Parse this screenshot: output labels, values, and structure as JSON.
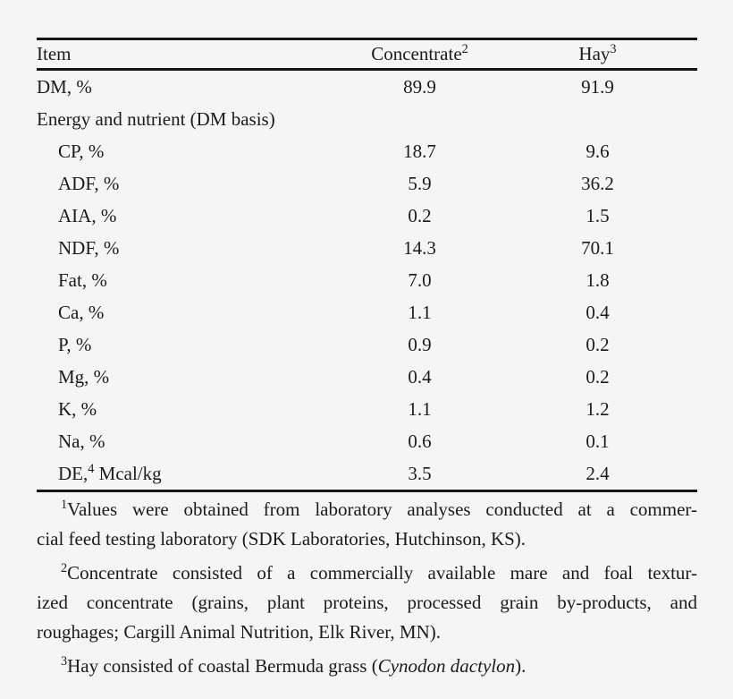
{
  "page": {
    "background": "#f5f5f6",
    "text_color": "#1b1b1b",
    "rule_color": "#161616"
  },
  "table": {
    "columns": [
      {
        "label": "Item",
        "sup": ""
      },
      {
        "label": "Concentrate",
        "sup": "2"
      },
      {
        "label": "Hay",
        "sup": "3"
      }
    ],
    "rows": [
      {
        "label": "DM, %",
        "indent": false,
        "concentrate": "89.9",
        "hay": "91.9"
      },
      {
        "label": "Energy and nutrient (DM basis)",
        "indent": false,
        "concentrate": "",
        "hay": ""
      },
      {
        "label": "CP, %",
        "indent": true,
        "concentrate": "18.7",
        "hay": "9.6"
      },
      {
        "label": "ADF, %",
        "indent": true,
        "concentrate": "5.9",
        "hay": "36.2"
      },
      {
        "label": "AIA, %",
        "indent": true,
        "concentrate": "0.2",
        "hay": "1.5"
      },
      {
        "label": "NDF, %",
        "indent": true,
        "concentrate": "14.3",
        "hay": "70.1"
      },
      {
        "label": "Fat, %",
        "indent": true,
        "concentrate": "7.0",
        "hay": "1.8"
      },
      {
        "label": "Ca, %",
        "indent": true,
        "concentrate": "1.1",
        "hay": "0.4"
      },
      {
        "label": "P, %",
        "indent": true,
        "concentrate": "0.9",
        "hay": "0.2"
      },
      {
        "label": "Mg, %",
        "indent": true,
        "concentrate": "0.4",
        "hay": "0.2"
      },
      {
        "label": "K, %",
        "indent": true,
        "concentrate": "1.1",
        "hay": "1.2"
      },
      {
        "label": "Na, %",
        "indent": true,
        "concentrate": "0.6",
        "hay": "0.1"
      },
      {
        "label": "DE,",
        "label_sup": "4",
        "label_after": " Mcal/kg",
        "indent": true,
        "concentrate": "3.5",
        "hay": "2.4"
      }
    ]
  },
  "footnotes": [
    {
      "marker": "1",
      "lines": [
        {
          "justify": true,
          "segments": [
            {
              "t": "Values were obtained from laboratory analyses conducted at a commer-",
              "i": false
            }
          ]
        },
        {
          "justify": false,
          "segments": [
            {
              "t": "cial feed testing laboratory (SDK Laboratories, Hutchinson, KS).",
              "i": false
            }
          ]
        }
      ]
    },
    {
      "marker": "2",
      "lines": [
        {
          "justify": true,
          "segments": [
            {
              "t": "Concentrate consisted of a commercially available mare and foal textur-",
              "i": false
            }
          ]
        },
        {
          "justify": true,
          "segments": [
            {
              "t": "ized concentrate (grains, plant proteins, processed grain by-products, and",
              "i": false
            }
          ]
        },
        {
          "justify": false,
          "segments": [
            {
              "t": "roughages; Cargill Animal Nutrition, Elk River, MN).",
              "i": false
            }
          ]
        }
      ]
    },
    {
      "marker": "3",
      "lines": [
        {
          "justify": false,
          "segments": [
            {
              "t": "Hay consisted of coastal Bermuda grass (",
              "i": false
            },
            {
              "t": "Cynodon dactylon",
              "i": true
            },
            {
              "t": ").",
              "i": false
            }
          ]
        }
      ]
    }
  ]
}
